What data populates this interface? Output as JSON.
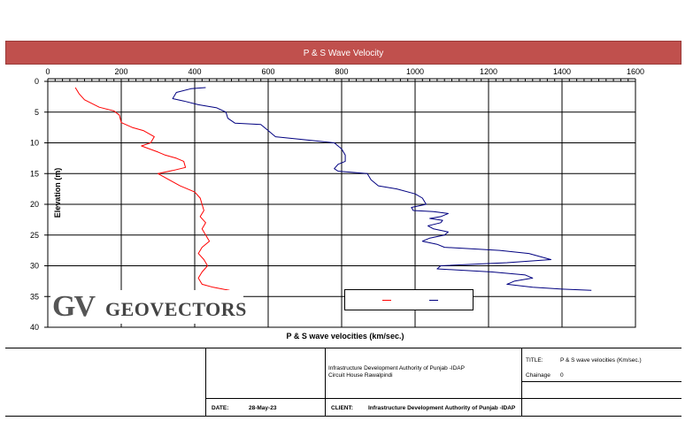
{
  "chart_data": {
    "type": "line",
    "title": "P & S Wave Velocity",
    "xlabel": "P & S wave velocities (km/sec.)",
    "ylabel": "Elevation (m)",
    "xlim": [
      0,
      1600
    ],
    "ylim": [
      0,
      40
    ],
    "x_ticks": [
      "0",
      "200",
      "400",
      "600",
      "800",
      "1000",
      "1200",
      "1400",
      "1600"
    ],
    "y_ticks": [
      "0",
      "5",
      "10",
      "15",
      "20",
      "25",
      "30",
      "35",
      "40"
    ],
    "y_inverted": true,
    "x_axis_position": "top",
    "grid": true,
    "legend_location": "bottom-right",
    "series": [
      {
        "color": "#ff0000",
        "points": [
          [
            75,
            1
          ],
          [
            85,
            2
          ],
          [
            100,
            3
          ],
          [
            140,
            4.2
          ],
          [
            180,
            4.8
          ],
          [
            195,
            5.5
          ],
          [
            200,
            6.7
          ],
          [
            230,
            7.5
          ],
          [
            260,
            8
          ],
          [
            290,
            9
          ],
          [
            280,
            10
          ],
          [
            255,
            10.5
          ],
          [
            300,
            11.5
          ],
          [
            320,
            12
          ],
          [
            350,
            12.5
          ],
          [
            370,
            13
          ],
          [
            375,
            14
          ],
          [
            340,
            14.5
          ],
          [
            300,
            15
          ],
          [
            330,
            16
          ],
          [
            360,
            17
          ],
          [
            400,
            18
          ],
          [
            415,
            19
          ],
          [
            420,
            20
          ],
          [
            425,
            21
          ],
          [
            415,
            22
          ],
          [
            430,
            23
          ],
          [
            420,
            24
          ],
          [
            430,
            25
          ],
          [
            440,
            26
          ],
          [
            420,
            27
          ],
          [
            410,
            28
          ],
          [
            425,
            29
          ],
          [
            435,
            30
          ],
          [
            420,
            31
          ],
          [
            410,
            32
          ],
          [
            420,
            33
          ],
          [
            450,
            33.5
          ],
          [
            495,
            34
          ]
        ]
      },
      {
        "color": "#000080",
        "points": [
          [
            430,
            1
          ],
          [
            390,
            1.2
          ],
          [
            350,
            1.8
          ],
          [
            340,
            2.8
          ],
          [
            370,
            3.2
          ],
          [
            410,
            3.8
          ],
          [
            460,
            4.3
          ],
          [
            485,
            5
          ],
          [
            490,
            6
          ],
          [
            510,
            6.8
          ],
          [
            580,
            7
          ],
          [
            600,
            8
          ],
          [
            620,
            9
          ],
          [
            700,
            9.5
          ],
          [
            780,
            10
          ],
          [
            800,
            11
          ],
          [
            810,
            12
          ],
          [
            810,
            13
          ],
          [
            790,
            13.5
          ],
          [
            780,
            14.2
          ],
          [
            790,
            14.6
          ],
          [
            870,
            15
          ],
          [
            880,
            16
          ],
          [
            900,
            17
          ],
          [
            950,
            17.5
          ],
          [
            1000,
            18.3
          ],
          [
            1020,
            19
          ],
          [
            1030,
            20
          ],
          [
            990,
            20.5
          ],
          [
            995,
            21
          ],
          [
            1050,
            21.2
          ],
          [
            1090,
            21.5
          ],
          [
            1070,
            22
          ],
          [
            1040,
            22.3
          ],
          [
            1075,
            22.6
          ],
          [
            1070,
            23
          ],
          [
            1035,
            23.5
          ],
          [
            1050,
            24
          ],
          [
            1090,
            24.5
          ],
          [
            1080,
            25
          ],
          [
            1040,
            25.5
          ],
          [
            1020,
            26
          ],
          [
            1060,
            26.5
          ],
          [
            1080,
            27
          ],
          [
            1230,
            27.5
          ],
          [
            1310,
            28
          ],
          [
            1370,
            29
          ],
          [
            1250,
            29.5
          ],
          [
            1070,
            30
          ],
          [
            1060,
            30.5
          ],
          [
            1210,
            31
          ],
          [
            1300,
            31.5
          ],
          [
            1320,
            32
          ],
          [
            1270,
            32.5
          ],
          [
            1250,
            33
          ],
          [
            1320,
            33.5
          ],
          [
            1400,
            33.8
          ],
          [
            1480,
            34
          ]
        ]
      }
    ]
  },
  "logo": {
    "mark": "GV",
    "name": "GEOVECTORS"
  },
  "title_block": {
    "project_line1": "Infrastructure Development Authority of Punjab -IDAP",
    "project_line2": "Circuit House Rawalpindi",
    "title_label": "TITLE:",
    "title_value": "P & S wave velocities (Km/sec.)",
    "chainage_label": "Chainage",
    "chainage_value": "0",
    "date_label": "DATE:",
    "date_value": "28-May-23",
    "client_label": "CLIENT:",
    "client_value": "Infrastructure Development Authority of Punjab -IDAP"
  }
}
